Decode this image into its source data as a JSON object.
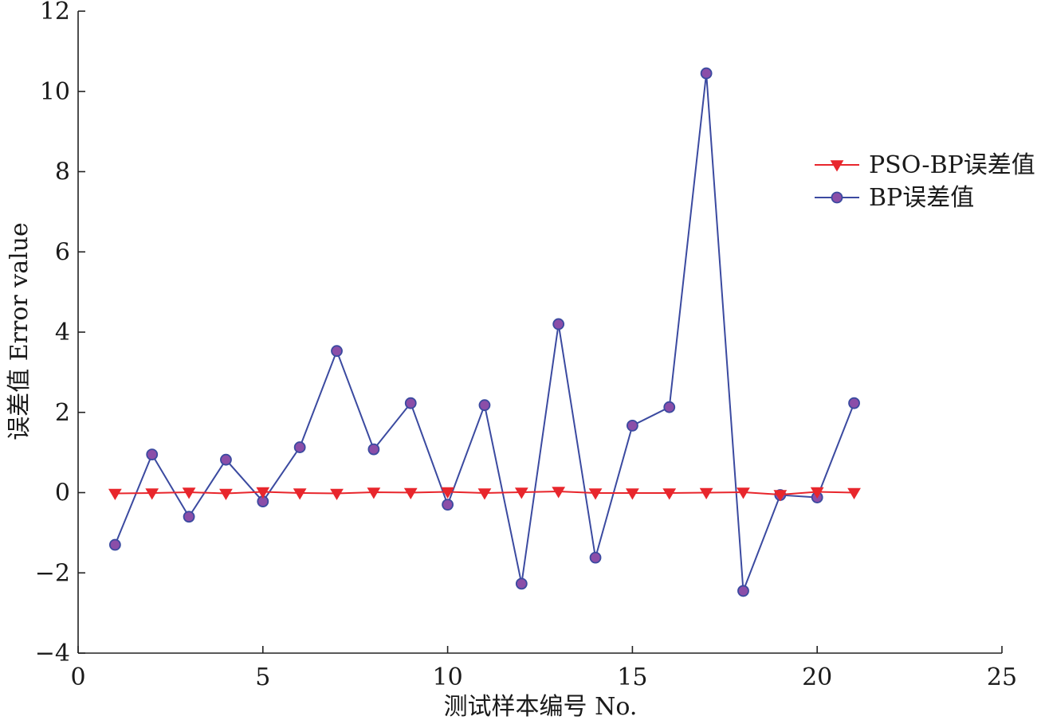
{
  "chart_data": {
    "type": "line",
    "title": "",
    "xlabel": "测试样本编号 No.",
    "ylabel": "误差值 Error value",
    "xlim": [
      0,
      25
    ],
    "ylim": [
      -4,
      12
    ],
    "x_ticks": [
      "0",
      "5",
      "10",
      "15",
      "20",
      "25"
    ],
    "y_ticks": [
      "−4",
      "−2",
      "0",
      "2",
      "4",
      "6",
      "8",
      "10",
      "12"
    ],
    "grid": false,
    "legend_position": "right",
    "x": [
      1,
      2,
      3,
      4,
      5,
      6,
      7,
      8,
      9,
      10,
      11,
      12,
      13,
      14,
      15,
      16,
      17,
      18,
      19,
      20,
      21
    ],
    "series": [
      {
        "name": "PSO-BP误差值",
        "color": "#e8262c",
        "marker": "triangle-down",
        "values": [
          -0.02,
          -0.01,
          0.01,
          -0.02,
          0.02,
          -0.01,
          -0.02,
          0.01,
          0.0,
          0.02,
          -0.01,
          0.01,
          0.03,
          -0.01,
          -0.01,
          -0.01,
          0.0,
          0.01,
          -0.05,
          0.02,
          0.0
        ]
      },
      {
        "name": "BP误差值",
        "color": "#3b4aa0",
        "marker_fill": "#8b4ea8",
        "marker": "circle",
        "values": [
          -1.3,
          0.95,
          -0.6,
          0.82,
          -0.22,
          1.13,
          3.53,
          1.08,
          2.23,
          -0.3,
          2.18,
          -2.27,
          4.2,
          -1.62,
          1.67,
          2.13,
          10.45,
          -2.45,
          -0.06,
          -0.12,
          2.23
        ]
      }
    ]
  }
}
